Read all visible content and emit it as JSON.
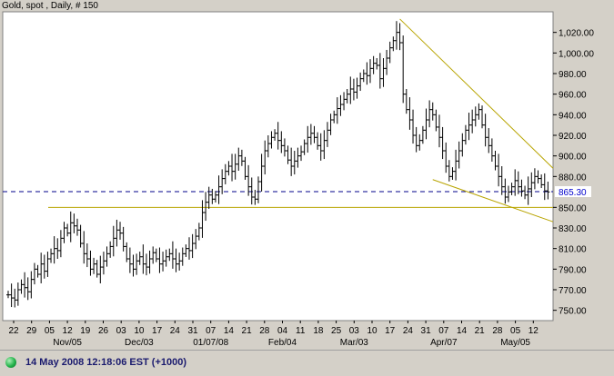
{
  "title": "Gold, spot , Daily, # 150",
  "status": {
    "timestamp": "14 May 2008 12:18:06 EST (+1000)",
    "colors": {
      "dot": "#23b24a",
      "text": "#1a1a6e"
    }
  },
  "colors": {
    "plot_bg": "#ffffff",
    "frame_bg": "#d4d0c8",
    "bars": "#000000",
    "trendlines": "#b8a400",
    "dashed_ref": "#00008b",
    "price_label": "#0000cc"
  },
  "chart_data": {
    "type": "ohlc",
    "frequency": "Daily",
    "ylim": [
      740,
      1040
    ],
    "y_ticks": [
      750,
      770,
      790,
      810,
      830,
      850,
      880,
      900,
      920,
      940,
      960,
      980,
      1000,
      1020
    ],
    "y_tick_labels": [
      "750.00",
      "770.00",
      "790.00",
      "810.00",
      "830.00",
      "850.00",
      "880.00",
      "900.00",
      "920.00",
      "940.00",
      "960.00",
      "980.00",
      "1,000.00",
      "1,020.00"
    ],
    "current_price": 865.3,
    "current_price_label": "865.30",
    "x_day_labels": [
      "22",
      "29",
      "05",
      "12",
      "19",
      "26",
      "03",
      "10",
      "17",
      "24",
      "31",
      "07",
      "14",
      "21",
      "28",
      "04",
      "11",
      "18",
      "25",
      "03",
      "10",
      "17",
      "24",
      "31",
      "07",
      "14",
      "21",
      "28",
      "05",
      "12"
    ],
    "x_month_labels": [
      "Nov/05",
      "Dec/03",
      "01/07/08",
      "Feb/04",
      "Mar/03",
      "Apr/07",
      "May/05"
    ],
    "closes": [
      765,
      762,
      760,
      770,
      775,
      772,
      768,
      780,
      790,
      785,
      795,
      788,
      800,
      805,
      810,
      808,
      820,
      830,
      825,
      835,
      832,
      828,
      815,
      805,
      800,
      790,
      795,
      785,
      792,
      798,
      805,
      812,
      820,
      828,
      825,
      812,
      800,
      795,
      790,
      798,
      802,
      795,
      792,
      800,
      806,
      800,
      795,
      798,
      802,
      805,
      800,
      795,
      798,
      805,
      810,
      808,
      815,
      822,
      830,
      845,
      855,
      862,
      858,
      862,
      870,
      878,
      885,
      890,
      885,
      892,
      900,
      895,
      880,
      870,
      860,
      858,
      875,
      890,
      905,
      912,
      918,
      922,
      915,
      910,
      905,
      896,
      890,
      895,
      900,
      904,
      912,
      918,
      922,
      918,
      910,
      905,
      915,
      925,
      935,
      940,
      946,
      950,
      955,
      960,
      965,
      962,
      968,
      975,
      980,
      978,
      985,
      990,
      988,
      975,
      985,
      995,
      1005,
      1012,
      1020,
      1010,
      960,
      945,
      935,
      920,
      910,
      915,
      925,
      935,
      945,
      940,
      928,
      918,
      905,
      890,
      880,
      885,
      895,
      905,
      915,
      925,
      930,
      935,
      940,
      945,
      930,
      918,
      910,
      900,
      890,
      880,
      870,
      860,
      865,
      870,
      876,
      870,
      866,
      862,
      868,
      874,
      880,
      878,
      872,
      866,
      865
    ],
    "annotations": {
      "horizontal_support": 850,
      "dashed_reference": 865.3,
      "upper_trendline": {
        "from": [
          119,
          1033
        ],
        "to": [
          164,
          888
        ]
      },
      "lower_trendline": {
        "from": [
          129,
          877
        ],
        "to": [
          164,
          836
        ]
      }
    }
  }
}
